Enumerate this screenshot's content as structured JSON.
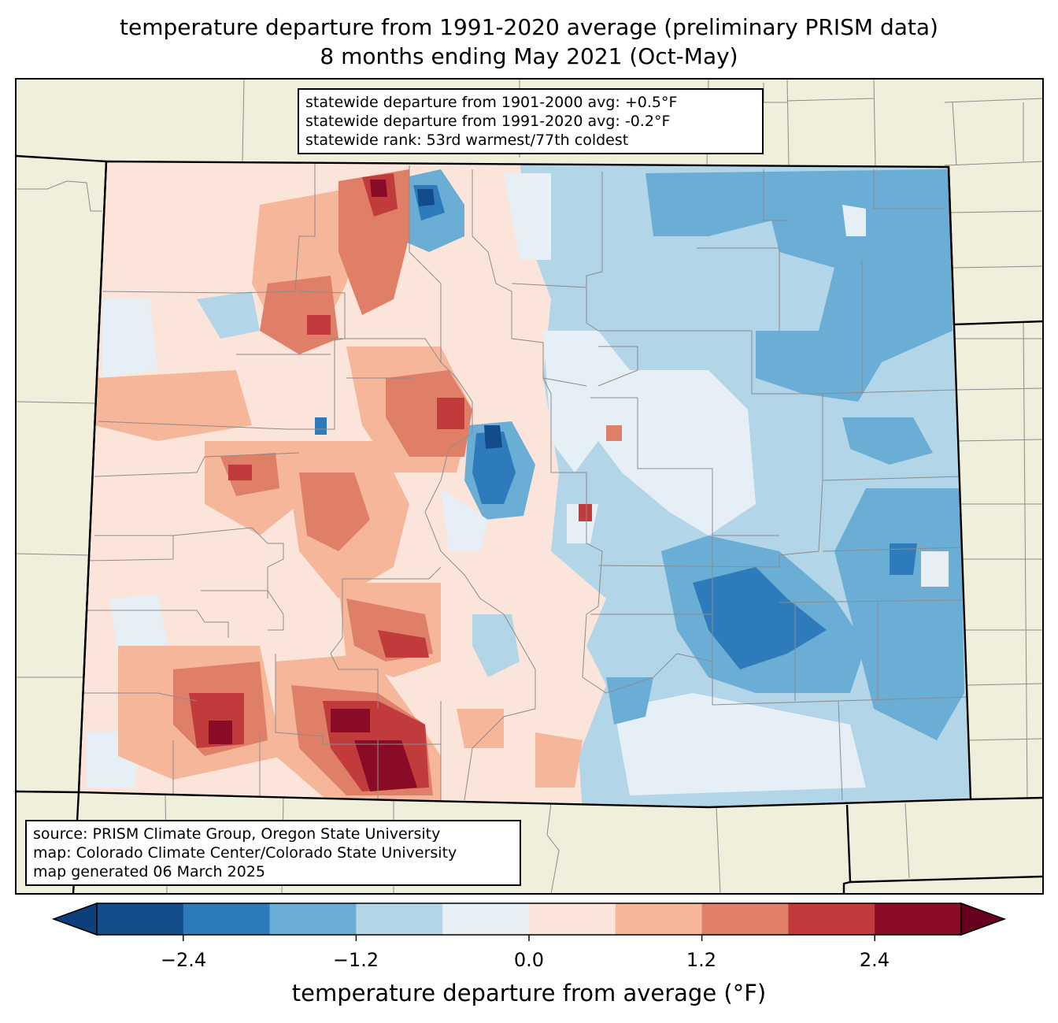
{
  "title": {
    "line1": "temperature departure from 1991-2020 average (preliminary PRISM data)",
    "line2": "8 months ending May 2021 (Oct-May)"
  },
  "stats_box": {
    "line1": "statewide departure from 1901-2000 avg: +0.5°F",
    "line2": "statewide departure from 1991-2020 avg: -0.2°F",
    "line3": "statewide rank: 53rd warmest/77th coldest"
  },
  "source_box": {
    "line1": "source: PRISM Climate Group, Oregon State University",
    "line2": "map: Colorado Climate Center/Colorado State University",
    "line3": "map generated 06 March 2025"
  },
  "colorbar": {
    "label": "temperature departure from average (°F)",
    "ticks": [
      "−2.4",
      "−1.2",
      "0.0",
      "1.2",
      "2.4"
    ],
    "bins": [
      -3.0,
      -2.4,
      -1.8,
      -1.2,
      -0.6,
      0.0,
      0.6,
      1.2,
      1.8,
      2.4,
      3.0
    ],
    "colors": [
      "#0d3f7a",
      "#124c8a",
      "#2e7bbb",
      "#6aadd5",
      "#b2d5e8",
      "#e6eff6",
      "#fbe5da",
      "#f6b69a",
      "#e07f68",
      "#c13a3c",
      "#8a0b25",
      "#67001f"
    ]
  },
  "map": {
    "land_color": "#efefdc",
    "state": "Colorado",
    "east_side": "cool (blue)",
    "west_side": "warm (red)"
  }
}
